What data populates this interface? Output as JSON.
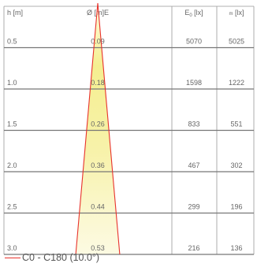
{
  "chart_data": {
    "type": "table",
    "headers": {
      "height": "h [m]",
      "diameter": "Ø [m]E",
      "e0": "E",
      "e0_sub": "0",
      "e0_unit": " [lx]",
      "em_sub": "m",
      "em_unit": " [lx]"
    },
    "rows": [
      {
        "h": "0.5",
        "d": "0.09",
        "e0": "5070",
        "em": "5025"
      },
      {
        "h": "1.0",
        "d": "0.18",
        "e0": "1598",
        "em": "1222"
      },
      {
        "h": "1.5",
        "d": "0.26",
        "e0": "833",
        "em": "551"
      },
      {
        "h": "2.0",
        "d": "0.36",
        "e0": "467",
        "em": "302"
      },
      {
        "h": "2.5",
        "d": "0.44",
        "e0": "299",
        "em": "196"
      },
      {
        "h": "3.0",
        "d": "0.53",
        "e0": "216",
        "em": "136"
      }
    ],
    "beam": {
      "name": "C0 - C180 (10.0°)",
      "angle_deg": 10.0,
      "line_color": "#e8322c",
      "fill_color_center": "#f2ec84"
    },
    "grid_color": "#777777",
    "legend": "bottom-left"
  }
}
